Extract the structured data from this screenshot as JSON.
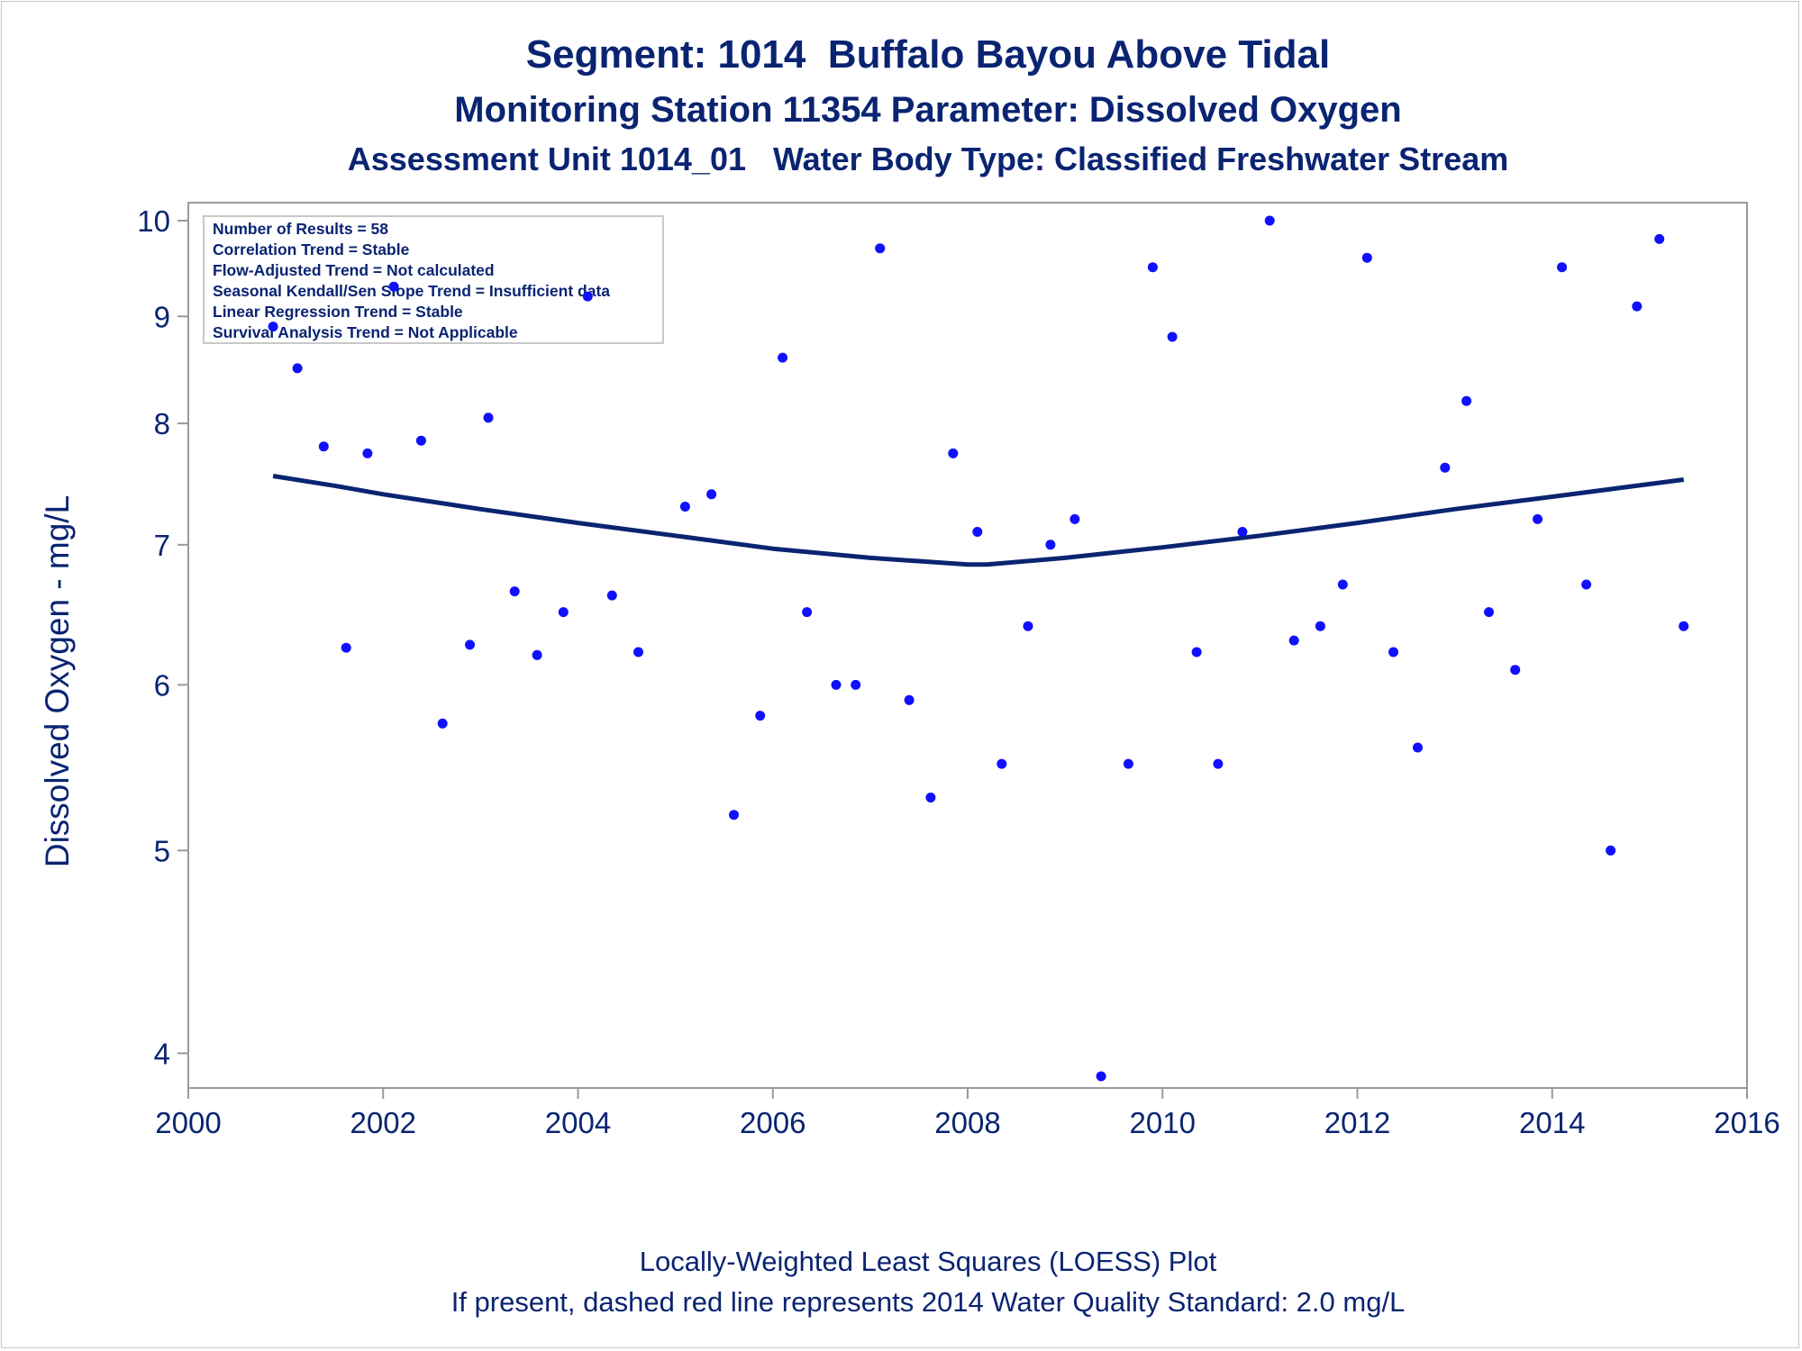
{
  "titles": {
    "line1": "Segment: 1014  Buffalo Bayou Above Tidal",
    "line2": "Monitoring Station 11354 Parameter: Dissolved Oxygen",
    "line3": "Assessment Unit 1014_01   Water Body Type: Classified Freshwater Stream"
  },
  "footers": {
    "line1": "Locally-Weighted Least Squares (LOESS) Plot",
    "line2": "If present, dashed red line represents 2014 Water Quality Standard: 2.0 mg/L"
  },
  "inset": {
    "lines": [
      "Number of Results = 58",
      "Correlation Trend = Stable",
      "Flow-Adjusted Trend = Not calculated",
      "Seasonal Kendall/Sen Slope Trend = Insufficient data",
      "Linear Regression Trend = Stable",
      "Survival Analysis Trend = Not Applicable"
    ]
  },
  "colors": {
    "text": "#0a2472",
    "points": "#1010ff",
    "loess": "#0a2472",
    "axis": "#9a9a9a"
  },
  "chart_data": {
    "type": "scatter",
    "ylabel": "Dissolved Oxygen - mg/L",
    "xlabel": "",
    "y_scale": "log",
    "xlim": [
      2000,
      2016
    ],
    "ylim": [
      3.85,
      10.2
    ],
    "x_ticks": [
      "2000",
      "2002",
      "2004",
      "2006",
      "2008",
      "2010",
      "2012",
      "2014",
      "2016"
    ],
    "y_ticks": [
      "4",
      "5",
      "6",
      "7",
      "8",
      "9",
      "10"
    ],
    "grid": false,
    "series": [
      {
        "kind": "points",
        "points": [
          [
            2000.87,
            8.9
          ],
          [
            2001.12,
            8.5
          ],
          [
            2001.39,
            7.8
          ],
          [
            2001.62,
            6.25
          ],
          [
            2001.84,
            7.74
          ],
          [
            2002.11,
            9.3
          ],
          [
            2002.39,
            7.85
          ],
          [
            2002.61,
            5.75
          ],
          [
            2002.89,
            6.27
          ],
          [
            2003.08,
            8.05
          ],
          [
            2003.35,
            6.65
          ],
          [
            2003.58,
            6.2
          ],
          [
            2003.85,
            6.5
          ],
          [
            2004.1,
            9.2
          ],
          [
            2004.35,
            6.62
          ],
          [
            2004.62,
            6.22
          ],
          [
            2005.1,
            7.3
          ],
          [
            2005.37,
            7.4
          ],
          [
            2005.6,
            5.2
          ],
          [
            2005.87,
            5.8
          ],
          [
            2006.1,
            8.6
          ],
          [
            2006.35,
            6.5
          ],
          [
            2006.65,
            6.0
          ],
          [
            2006.85,
            6.0
          ],
          [
            2007.1,
            9.7
          ],
          [
            2007.4,
            5.9
          ],
          [
            2007.62,
            5.3
          ],
          [
            2007.85,
            7.74
          ],
          [
            2008.1,
            7.1
          ],
          [
            2008.35,
            5.5
          ],
          [
            2008.62,
            6.4
          ],
          [
            2008.85,
            7.0
          ],
          [
            2009.1,
            7.2
          ],
          [
            2009.37,
            3.9
          ],
          [
            2009.65,
            5.5
          ],
          [
            2009.9,
            9.5
          ],
          [
            2010.1,
            8.8
          ],
          [
            2010.35,
            6.22
          ],
          [
            2010.57,
            5.5
          ],
          [
            2010.82,
            7.1
          ],
          [
            2011.1,
            10.0
          ],
          [
            2011.35,
            6.3
          ],
          [
            2011.62,
            6.4
          ],
          [
            2011.85,
            6.7
          ],
          [
            2012.1,
            9.6
          ],
          [
            2012.37,
            6.22
          ],
          [
            2012.62,
            5.6
          ],
          [
            2012.9,
            7.62
          ],
          [
            2013.12,
            8.2
          ],
          [
            2013.35,
            6.5
          ],
          [
            2013.62,
            6.1
          ],
          [
            2013.85,
            7.2
          ],
          [
            2014.1,
            9.5
          ],
          [
            2014.35,
            6.7
          ],
          [
            2014.6,
            5.0
          ],
          [
            2014.87,
            9.1
          ],
          [
            2015.1,
            9.8
          ],
          [
            2015.35,
            6.4
          ]
        ]
      },
      {
        "kind": "loess",
        "points": [
          [
            2000.87,
            7.55
          ],
          [
            2001.5,
            7.47
          ],
          [
            2002.0,
            7.4
          ],
          [
            2003.0,
            7.28
          ],
          [
            2004.0,
            7.17
          ],
          [
            2005.0,
            7.07
          ],
          [
            2006.0,
            6.97
          ],
          [
            2007.0,
            6.9
          ],
          [
            2008.0,
            6.85
          ],
          [
            2008.2,
            6.85
          ],
          [
            2009.0,
            6.9
          ],
          [
            2010.0,
            6.98
          ],
          [
            2011.0,
            7.07
          ],
          [
            2012.0,
            7.17
          ],
          [
            2013.0,
            7.28
          ],
          [
            2014.0,
            7.38
          ],
          [
            2015.35,
            7.52
          ]
        ]
      }
    ]
  }
}
